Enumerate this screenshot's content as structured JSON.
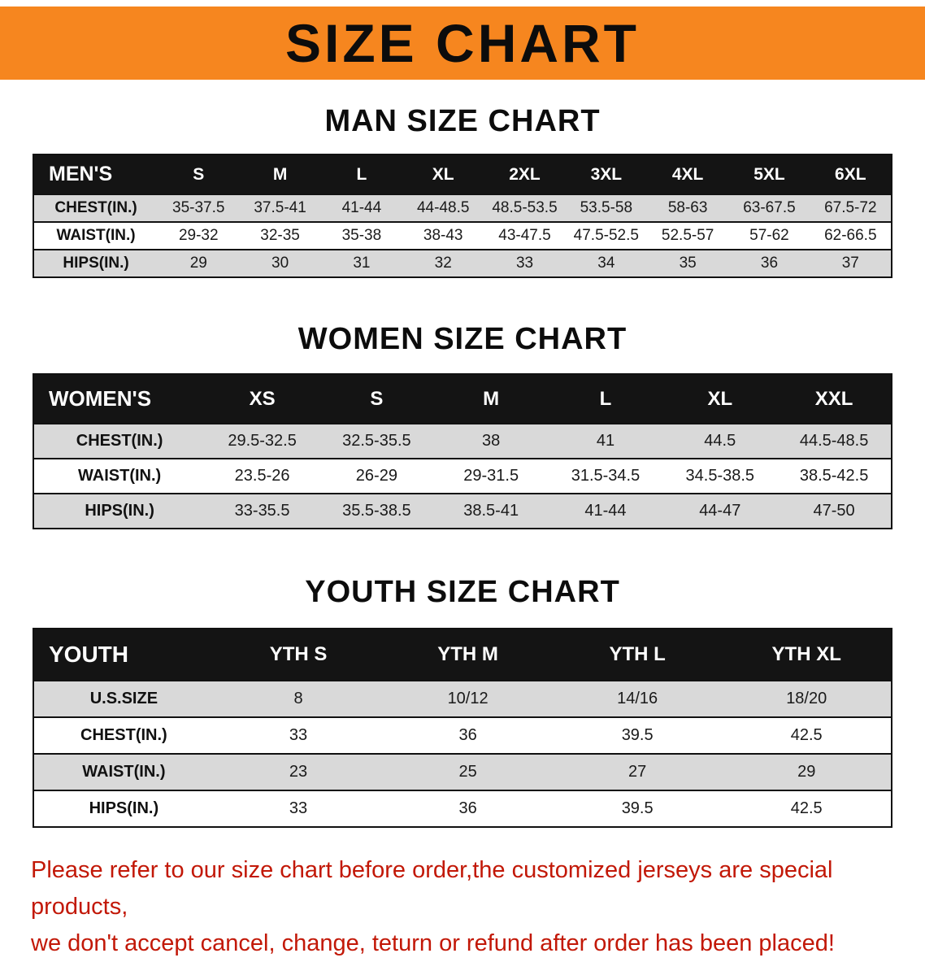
{
  "banner": {
    "title": "SIZE CHART"
  },
  "sections": {
    "man": {
      "heading": "MAN SIZE CHART",
      "table": {
        "header": [
          "MEN'S",
          "S",
          "M",
          "L",
          "XL",
          "2XL",
          "3XL",
          "4XL",
          "5XL",
          "6XL"
        ],
        "rows": [
          [
            "CHEST(IN.)",
            "35-37.5",
            "37.5-41",
            "41-44",
            "44-48.5",
            "48.5-53.5",
            "53.5-58",
            "58-63",
            "63-67.5",
            "67.5-72"
          ],
          [
            "WAIST(IN.)",
            "29-32",
            "32-35",
            "35-38",
            "38-43",
            "43-47.5",
            "47.5-52.5",
            "52.5-57",
            "57-62",
            "62-66.5"
          ],
          [
            "HIPS(IN.)",
            "29",
            "30",
            "31",
            "32",
            "33",
            "34",
            "35",
            "36",
            "37"
          ]
        ]
      }
    },
    "women": {
      "heading": "WOMEN SIZE CHART",
      "table": {
        "header": [
          "WOMEN'S",
          "XS",
          "S",
          "M",
          "L",
          "XL",
          "XXL"
        ],
        "rows": [
          [
            "CHEST(IN.)",
            "29.5-32.5",
            "32.5-35.5",
            "38",
            "41",
            "44.5",
            "44.5-48.5"
          ],
          [
            "WAIST(IN.)",
            "23.5-26",
            "26-29",
            "29-31.5",
            "31.5-34.5",
            "34.5-38.5",
            "38.5-42.5"
          ],
          [
            "HIPS(IN.)",
            "33-35.5",
            "35.5-38.5",
            "38.5-41",
            "41-44",
            "44-47",
            "47-50"
          ]
        ]
      }
    },
    "youth": {
      "heading": "YOUTH SIZE CHART",
      "table": {
        "header": [
          "YOUTH",
          "YTH S",
          "YTH M",
          "YTH L",
          "YTH XL"
        ],
        "rows": [
          [
            "U.S.SIZE",
            "8",
            "10/12",
            "14/16",
            "18/20"
          ],
          [
            "CHEST(IN.)",
            "33",
            "36",
            "39.5",
            "42.5"
          ],
          [
            "WAIST(IN.)",
            "23",
            "25",
            "27",
            "29"
          ],
          [
            "HIPS(IN.)",
            "33",
            "36",
            "39.5",
            "42.5"
          ]
        ]
      }
    }
  },
  "notice": {
    "line1": "Please refer to our size chart before order,the customized jerseys are special products,",
    "line2": "we don't accept cancel, change, teturn or refund after order has been placed!"
  },
  "colors": {
    "banner_bg": "#f6861f",
    "table_header_bg": "#141414",
    "row_shaded_bg": "#d9d9d9",
    "notice_text": "#c21807"
  }
}
